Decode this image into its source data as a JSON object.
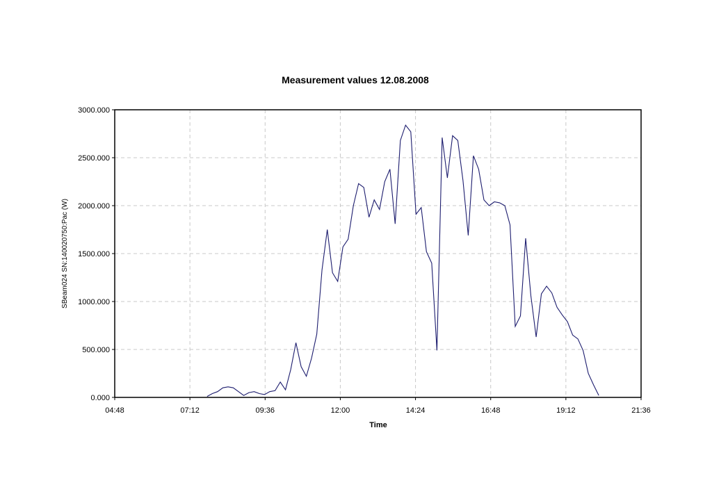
{
  "chart_data": {
    "type": "line",
    "title": "Measurement values 12.08.2008",
    "xlabel": "Time",
    "ylabel": "SBeam024 SN:140020750:Pac (W)",
    "xlim": [
      "04:48",
      "21:36"
    ],
    "ylim": [
      0,
      3000
    ],
    "x_ticks": [
      "04:48",
      "07:12",
      "09:36",
      "12:00",
      "14:24",
      "16:48",
      "19:12",
      "21:36"
    ],
    "y_ticks": [
      "0.000",
      "500.000",
      "1000.000",
      "1500.000",
      "2000.000",
      "2500.000",
      "3000.000"
    ],
    "grid": true,
    "series": [
      {
        "color": "#1c1c6e",
        "x": [
          "07:45",
          "07:55",
          "08:05",
          "08:15",
          "08:25",
          "08:35",
          "08:45",
          "08:55",
          "09:05",
          "09:15",
          "09:25",
          "09:35",
          "09:45",
          "09:55",
          "10:05",
          "10:15",
          "10:25",
          "10:35",
          "10:45",
          "10:55",
          "11:05",
          "11:15",
          "11:25",
          "11:35",
          "11:45",
          "11:55",
          "12:05",
          "12:15",
          "12:25",
          "12:35",
          "12:45",
          "12:55",
          "13:05",
          "13:15",
          "13:25",
          "13:35",
          "13:45",
          "13:55",
          "14:05",
          "14:15",
          "14:25",
          "14:35",
          "14:45",
          "14:55",
          "15:05",
          "15:15",
          "15:25",
          "15:35",
          "15:45",
          "15:55",
          "16:05",
          "16:15",
          "16:25",
          "16:35",
          "16:45",
          "16:55",
          "17:05",
          "17:15",
          "17:25",
          "17:35",
          "17:45",
          "17:55",
          "18:05",
          "18:15",
          "18:25",
          "18:35",
          "18:45",
          "18:55",
          "19:05",
          "19:15",
          "19:25",
          "19:35",
          "19:45",
          "19:55",
          "20:05",
          "20:15"
        ],
        "y": [
          10,
          40,
          60,
          100,
          110,
          100,
          60,
          20,
          50,
          60,
          40,
          30,
          60,
          70,
          160,
          80,
          290,
          570,
          320,
          220,
          410,
          660,
          1330,
          1750,
          1300,
          1210,
          1570,
          1650,
          2000,
          2230,
          2190,
          1880,
          2060,
          1960,
          2250,
          2380,
          1810,
          2680,
          2840,
          2770,
          1910,
          1980,
          1520,
          1400,
          490,
          2710,
          2290,
          2730,
          2680,
          2260,
          1690,
          2520,
          2380,
          2060,
          2000,
          2040,
          2030,
          2000,
          1800,
          740,
          850,
          1660,
          1060,
          630,
          1080,
          1160,
          1090,
          940,
          860,
          790,
          650,
          610,
          490,
          250,
          130,
          20
        ]
      }
    ]
  }
}
